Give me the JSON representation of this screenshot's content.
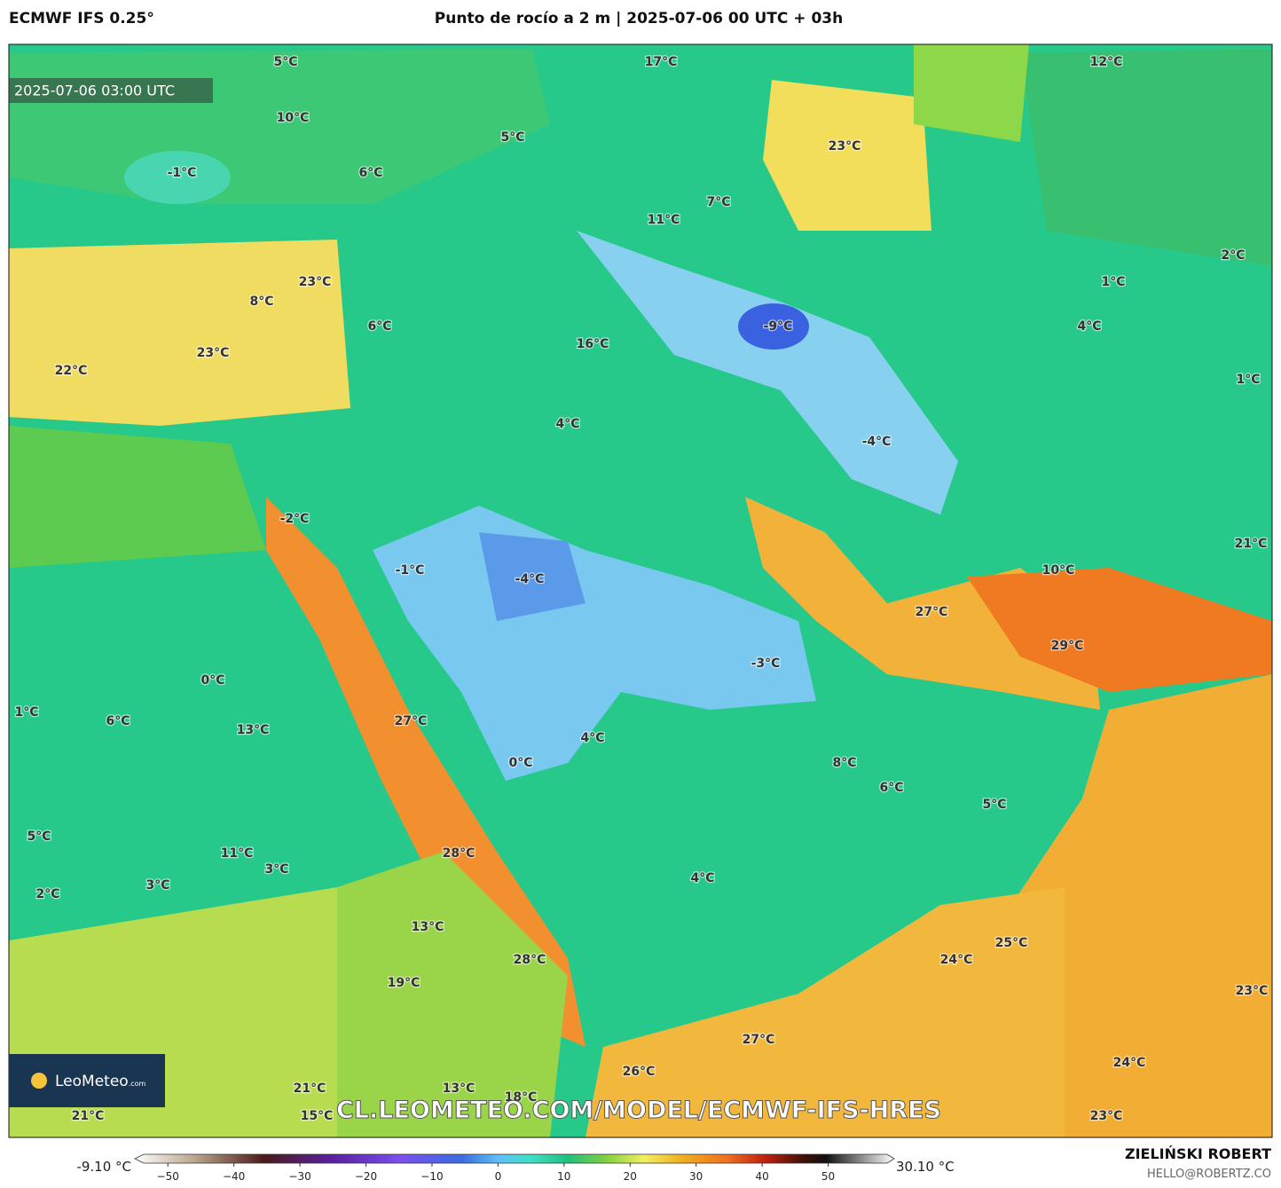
{
  "header": {
    "model": "ECMWF IFS 0.25°",
    "title": "Punto de rocío a 2 m | 2025-07-06 00 UTC + 03h"
  },
  "timestamp": "2025-07-06 03:00 UTC",
  "map": {
    "labels": [
      "5°C",
      "17°C",
      "12°C",
      "10°C",
      "5°C",
      "23°C",
      "-1°C",
      "6°C",
      "11°C",
      "7°C",
      "2°C",
      "23°C",
      "1°C",
      "8°C",
      "-9°C",
      "6°C",
      "4°C",
      "16°C",
      "23°C",
      "22°C",
      "1°C",
      "4°C",
      "-4°C",
      "-2°C",
      "21°C",
      "10°C",
      "-1°C",
      "-4°C",
      "27°C",
      "29°C",
      "-3°C",
      "0°C",
      "1°C",
      "6°C",
      "27°C",
      "13°C",
      "4°C",
      "8°C",
      "0°C",
      "6°C",
      "5°C",
      "5°C",
      "11°C",
      "28°C",
      "3°C",
      "4°C",
      "3°C",
      "2°C",
      "13°C",
      "25°C",
      "28°C",
      "24°C",
      "19°C",
      "23°C",
      "27°C",
      "24°C",
      "26°C",
      "13°C",
      "21°C",
      "18°C",
      "21°C",
      "15°C",
      "23°C"
    ]
  },
  "watermark": "CL.LEOMETEO.COM/MODEL/ECMWF-IFS-HRES",
  "logo": {
    "name": "LeoMeteo",
    "suffix": ".com"
  },
  "colorbar": {
    "min_label": "-9.10 °C",
    "max_label": "30.10 °C",
    "lim": [
      -55,
      60
    ],
    "ticks": [
      {
        "value": -50,
        "label": "−50"
      },
      {
        "value": -40,
        "label": "−40"
      },
      {
        "value": -30,
        "label": "−30"
      },
      {
        "value": -20,
        "label": "−20"
      },
      {
        "value": -10,
        "label": "−10"
      },
      0,
      10,
      20,
      30,
      40,
      50
    ]
  },
  "credits": {
    "author": "ZIELIŃSKI ROBERT",
    "email": "HELLO@ROBERTZ.CO"
  }
}
